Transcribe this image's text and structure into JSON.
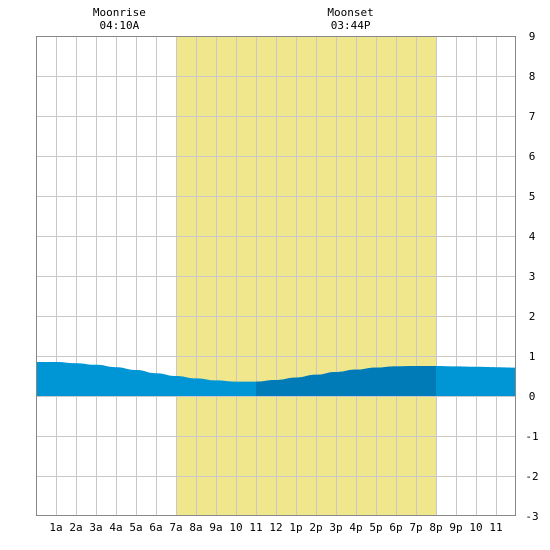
{
  "chart_data": {
    "type": "area",
    "x_tick_labels": [
      "1a",
      "2a",
      "3a",
      "4a",
      "5a",
      "6a",
      "7a",
      "8a",
      "9a",
      "10",
      "11",
      "12",
      "1p",
      "2p",
      "3p",
      "4p",
      "5p",
      "6p",
      "7p",
      "8p",
      "9p",
      "10",
      "11"
    ],
    "y_tick_labels": [
      "-3",
      "-2",
      "-1",
      "0",
      "1",
      "2",
      "3",
      "4",
      "5",
      "6",
      "7",
      "8",
      "9"
    ],
    "xlim": [
      0,
      24
    ],
    "ylim": [
      -3,
      9
    ],
    "grid": true,
    "daylight": {
      "start_hour": 7.0,
      "end_hour": 20.0,
      "color": "#f0e68c"
    },
    "annotations": [
      {
        "title": "Moonrise",
        "time": "04:10A",
        "hour": 4.17
      },
      {
        "title": "Moonset",
        "time": "03:44P",
        "hour": 15.73
      }
    ],
    "series": [
      {
        "x": [
          0,
          1,
          2,
          3,
          4,
          5,
          6,
          7,
          8,
          9,
          10,
          11,
          12,
          13,
          14,
          15,
          16,
          17,
          18,
          19,
          20,
          21,
          22,
          23,
          24
        ],
        "values": [
          0.85,
          0.85,
          0.82,
          0.78,
          0.72,
          0.65,
          0.57,
          0.5,
          0.44,
          0.39,
          0.36,
          0.36,
          0.4,
          0.46,
          0.53,
          0.6,
          0.66,
          0.71,
          0.74,
          0.75,
          0.75,
          0.74,
          0.73,
          0.72,
          0.71
        ]
      }
    ],
    "colors": {
      "water": "#0096d6",
      "water_dark": "#007bb8",
      "grid": "#c8c8c8",
      "border": "#000000"
    }
  }
}
